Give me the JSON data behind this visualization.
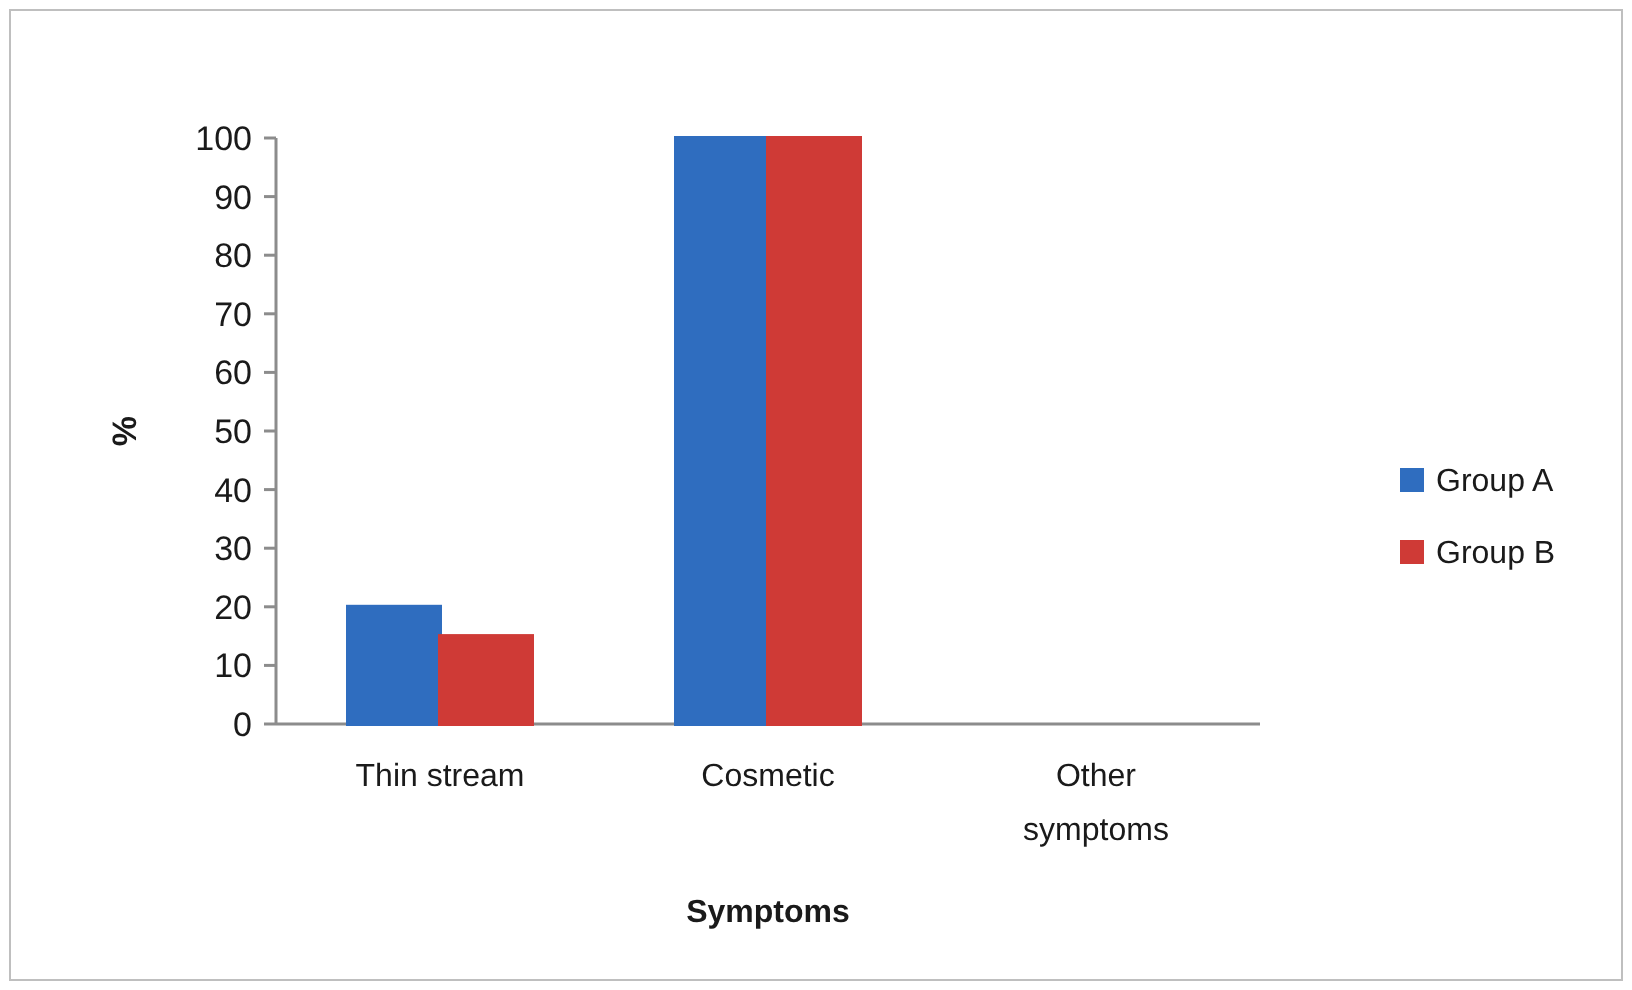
{
  "chart_data": {
    "type": "bar",
    "categories": [
      "Thin stream",
      "Cosmetic",
      "Other symptoms"
    ],
    "series": [
      {
        "name": "Group A",
        "color": "#2f6dbf",
        "values": [
          20,
          100,
          0
        ]
      },
      {
        "name": "Group B",
        "color": "#cf3a36",
        "values": [
          15,
          100,
          0
        ]
      }
    ],
    "xlabel": "Symptoms",
    "ylabel": "%",
    "ylim": [
      0,
      100
    ],
    "yticks": [
      0,
      10,
      20,
      30,
      40,
      50,
      60,
      70,
      80,
      90,
      100
    ],
    "grid": false,
    "legend": "right"
  }
}
